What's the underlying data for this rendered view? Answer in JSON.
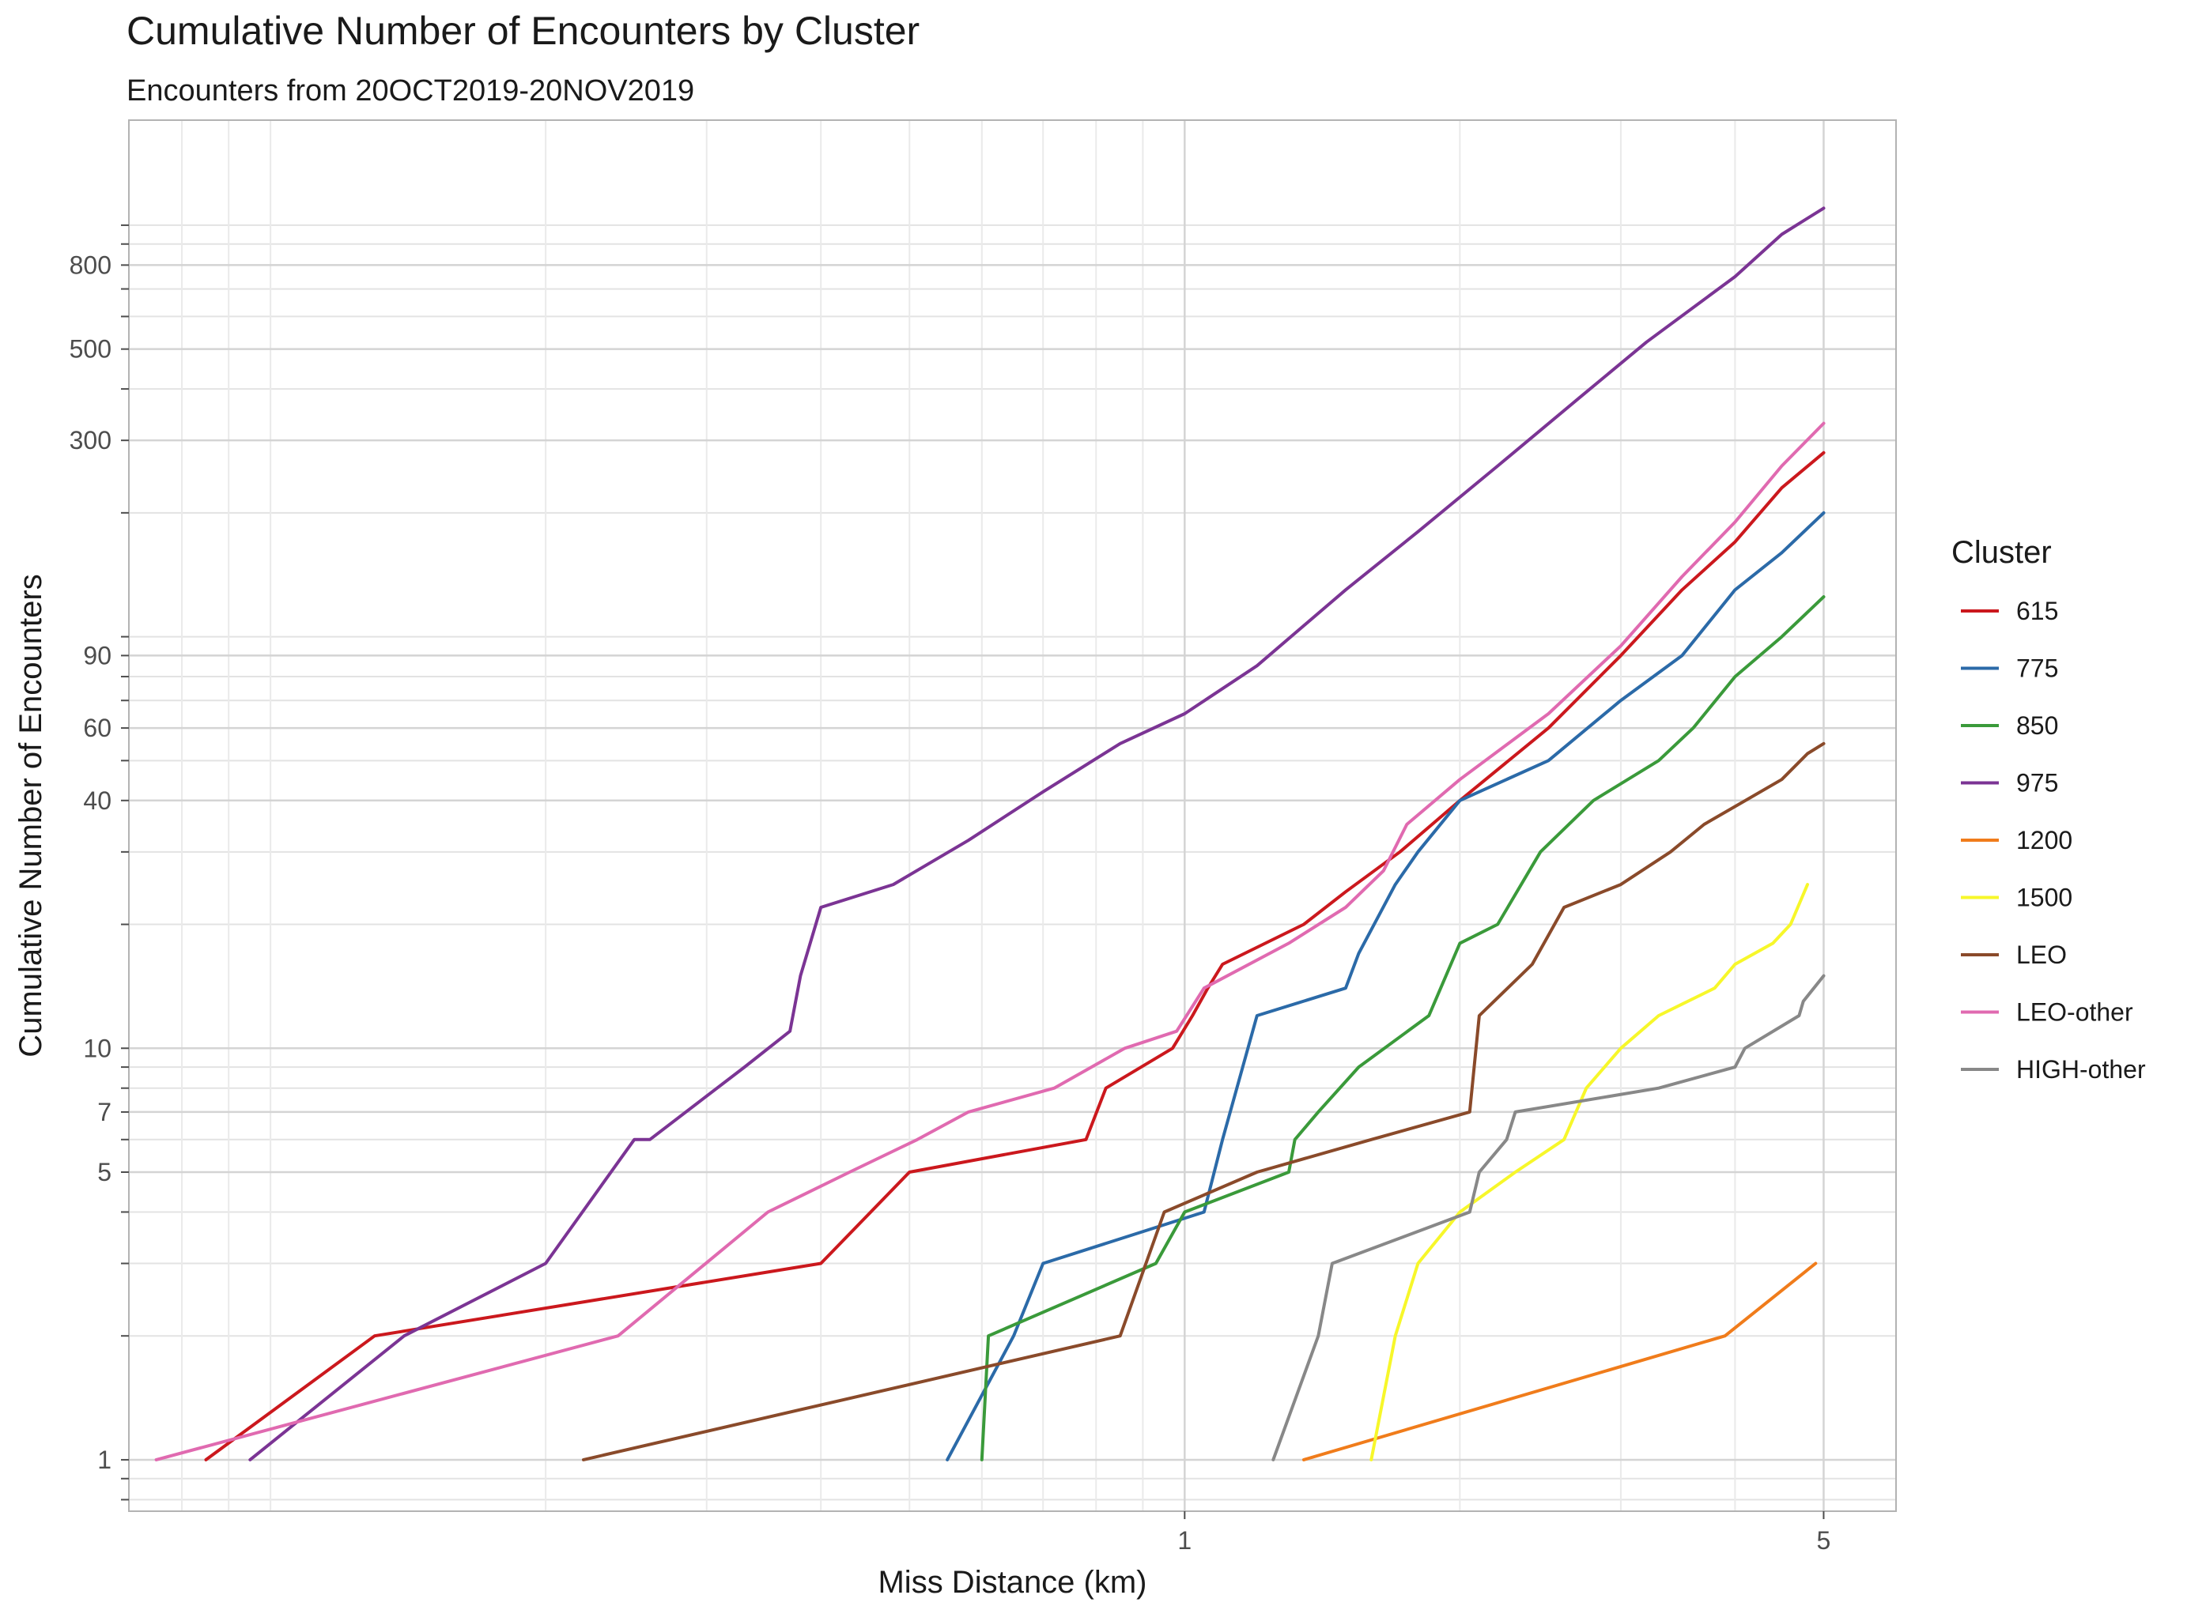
{
  "chart_data": {
    "type": "line",
    "title": "Cumulative Number of Encounters by Cluster",
    "subtitle": "Encounters from 20OCT2019-20NOV2019",
    "xlabel": "Miss Distance (km)",
    "ylabel": "Cumulative Number of Encounters",
    "x_scale": "log",
    "y_scale": "log",
    "xlim": [
      0.07,
      6.0
    ],
    "ylim": [
      0.75,
      1800
    ],
    "x_ticks": [
      1,
      5
    ],
    "x_tick_labels": [
      "1",
      "5"
    ],
    "y_ticks": [
      1,
      5,
      7,
      10,
      40,
      60,
      90,
      300,
      500,
      800
    ],
    "y_tick_labels": [
      "1",
      "5",
      "7",
      "10",
      "40",
      "60",
      "90",
      "300",
      "500",
      "800"
    ],
    "grid": true,
    "legend": {
      "title": "Cluster",
      "position": "right"
    },
    "series": [
      {
        "name": "615",
        "color": "#cb181d",
        "x": [
          0.085,
          0.13,
          0.4,
          0.5,
          0.78,
          0.82,
          0.97,
          1.02,
          1.06,
          1.1,
          1.35,
          1.5,
          1.72,
          2.0,
          2.5,
          3.0,
          3.5,
          4.0,
          4.5,
          5.0
        ],
        "y": [
          1,
          2,
          3,
          5,
          6,
          8,
          10,
          12,
          14,
          16,
          20,
          24,
          30,
          40,
          60,
          90,
          130,
          170,
          230,
          280
        ]
      },
      {
        "name": "775",
        "color": "#2b6aa8",
        "x": [
          0.55,
          0.65,
          0.7,
          1.05,
          1.1,
          1.2,
          1.5,
          1.55,
          1.7,
          1.8,
          2.0,
          2.5,
          3.0,
          3.5,
          4.0,
          4.5,
          5.0
        ],
        "y": [
          1,
          2,
          3,
          4,
          6,
          12,
          14,
          17,
          25,
          30,
          40,
          50,
          70,
          90,
          130,
          160,
          200
        ]
      },
      {
        "name": "850",
        "color": "#3a9a3a",
        "x": [
          0.6,
          0.61,
          0.93,
          1.0,
          1.3,
          1.32,
          1.4,
          1.55,
          1.85,
          2.0,
          2.2,
          2.45,
          2.8,
          3.3,
          3.6,
          4.0,
          4.5,
          5.0
        ],
        "y": [
          1,
          2,
          3,
          4,
          5,
          6,
          7,
          9,
          12,
          18,
          20,
          30,
          40,
          50,
          60,
          80,
          100,
          125
        ]
      },
      {
        "name": "975",
        "color": "#7b3494",
        "x": [
          0.095,
          0.14,
          0.2,
          0.25,
          0.26,
          0.33,
          0.37,
          0.38,
          0.4,
          0.48,
          0.58,
          0.7,
          0.85,
          1.0,
          1.2,
          1.5,
          1.8,
          2.2,
          2.7,
          3.2,
          4.0,
          4.5,
          5.0
        ],
        "y": [
          1,
          2,
          3,
          6,
          6,
          9,
          11,
          15,
          22,
          25,
          32,
          42,
          55,
          65,
          85,
          130,
          180,
          260,
          380,
          520,
          750,
          950,
          1100
        ]
      },
      {
        "name": "1200",
        "color": "#f07c1b",
        "x": [
          1.35,
          3.9,
          4.9
        ],
        "y": [
          1,
          2,
          3
        ]
      },
      {
        "name": "1500",
        "color": "#f7f72a",
        "x": [
          1.6,
          1.7,
          1.8,
          2.0,
          2.3,
          2.6,
          2.75,
          3.0,
          3.3,
          3.8,
          4.0,
          4.4,
          4.6,
          4.8
        ],
        "y": [
          1,
          2,
          3,
          4,
          5,
          6,
          8,
          10,
          12,
          14,
          16,
          18,
          20,
          25
        ]
      },
      {
        "name": "LEO",
        "color": "#8a4a2a",
        "x": [
          0.22,
          0.85,
          0.95,
          1.2,
          1.6,
          2.05,
          2.1,
          2.4,
          2.6,
          3.0,
          3.4,
          3.7,
          4.5,
          4.8,
          5.0
        ],
        "y": [
          1,
          2,
          4,
          5,
          6,
          7,
          12,
          16,
          22,
          25,
          30,
          35,
          45,
          52,
          55
        ]
      },
      {
        "name": "LEO-other",
        "color": "#e06ab0",
        "x": [
          0.075,
          0.24,
          0.35,
          0.43,
          0.51,
          0.58,
          0.72,
          0.86,
          0.98,
          1.05,
          1.3,
          1.5,
          1.65,
          1.75,
          2.0,
          2.5,
          3.0,
          3.5,
          4.0,
          4.5,
          5.0
        ],
        "y": [
          1,
          2,
          4,
          5,
          6,
          7,
          8,
          10,
          11,
          14,
          18,
          22,
          27,
          35,
          45,
          65,
          95,
          140,
          190,
          260,
          330
        ]
      },
      {
        "name": "HIGH-other",
        "color": "#888888",
        "x": [
          1.25,
          1.4,
          1.45,
          2.05,
          2.1,
          2.25,
          2.3,
          3.3,
          4.0,
          4.1,
          4.7,
          4.75,
          5.0
        ],
        "y": [
          1,
          2,
          3,
          4,
          5,
          6,
          7,
          8,
          9,
          10,
          12,
          13,
          15
        ]
      }
    ]
  }
}
